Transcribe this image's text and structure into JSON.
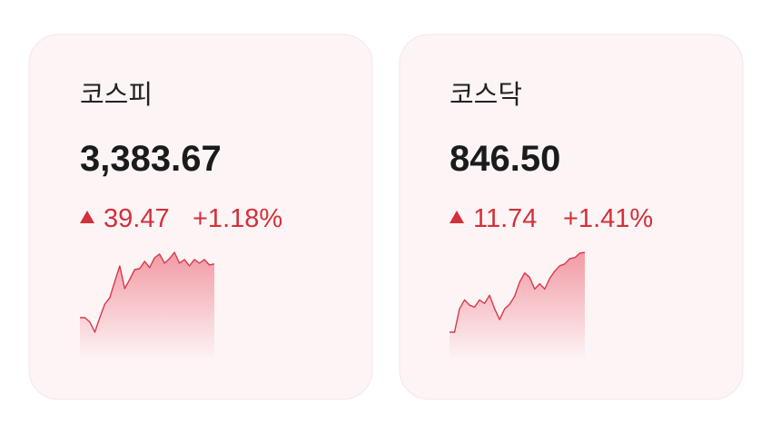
{
  "cards": [
    {
      "title": "코스피",
      "price": "3,383.67",
      "change": "39.47",
      "change_pct": "+1.18%",
      "sparkline": [
        3344.2,
        3344.2,
        3340.9,
        3333.5,
        3344.2,
        3354.2,
        3358.9,
        3370.9,
        3382.2,
        3365.5,
        3372.2,
        3379.5,
        3380.2,
        3385.6,
        3380.9,
        3388.2,
        3390.9,
        3384.2,
        3387.6,
        3392.2,
        3384.2,
        3386.9,
        3382.2,
        3386.9,
        3384.2,
        3386.9,
        3382.9,
        3383.67
      ]
    },
    {
      "title": "코스닥",
      "price": "846.50",
      "change": "11.74",
      "change_pct": "+1.41%",
      "sparkline": [
        834.76,
        834.76,
        838.19,
        839.51,
        838.72,
        838.46,
        839.51,
        838.98,
        840.17,
        838.19,
        836.61,
        838.19,
        838.85,
        840.04,
        842.15,
        843.47,
        842.81,
        841.1,
        841.89,
        841.1,
        842.68,
        843.74,
        844.53,
        844.79,
        845.58,
        845.72,
        846.38,
        846.5
      ]
    }
  ]
}
